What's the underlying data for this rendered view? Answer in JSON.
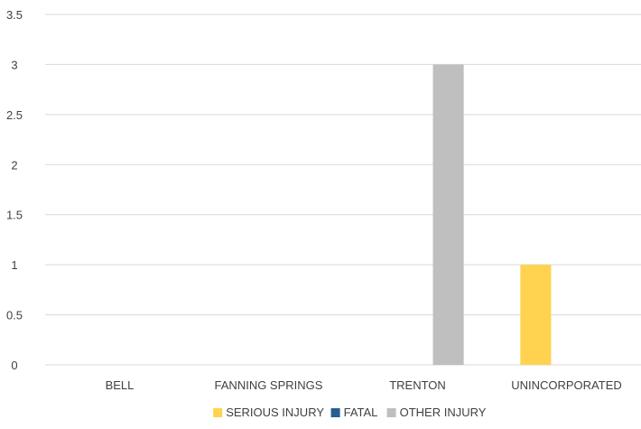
{
  "chart_data": {
    "type": "bar",
    "title": "",
    "categories": [
      "BELL",
      "FANNING SPRINGS",
      "TRENTON",
      "UNINCORPORATED"
    ],
    "series": [
      {
        "name": "SERIOUS INJURY",
        "color": "#FFD350",
        "values": [
          0,
          0,
          0,
          1
        ]
      },
      {
        "name": "FATAL",
        "color": "#255E91",
        "values": [
          0,
          0,
          0,
          0
        ]
      },
      {
        "name": "OTHER INJURY",
        "color": "#BFBFBF",
        "values": [
          0,
          0,
          3,
          0
        ]
      }
    ],
    "y_ticks": [
      "0",
      "0.5",
      "1",
      "1.5",
      "2",
      "2.5",
      "3",
      "3.5"
    ],
    "ylim": [
      0,
      3.5
    ],
    "grid": true,
    "legend_position": "bottom",
    "xlabel": "",
    "ylabel": ""
  }
}
